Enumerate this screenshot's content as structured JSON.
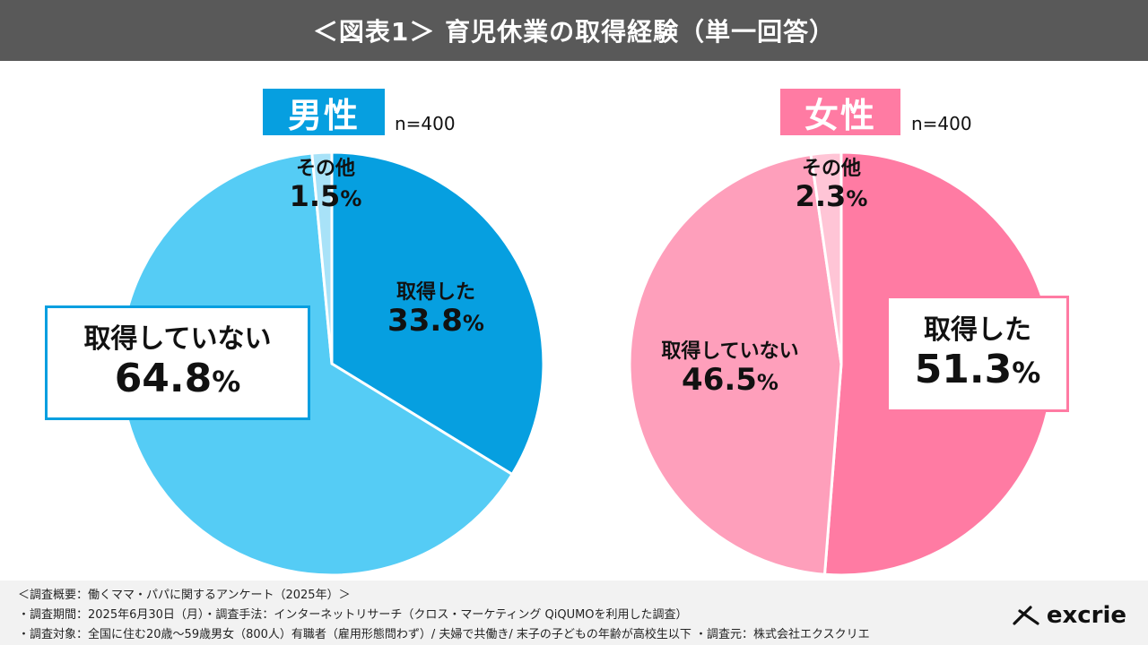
{
  "title": "＜図表1＞ 育児休業の取得経験（単一回答）",
  "chart_data": [
    {
      "type": "pie",
      "group": "男性",
      "n": "n=400",
      "slices": [
        {
          "label": "取得した",
          "value": 33.8,
          "display": "33.8",
          "color": "#069fe0"
        },
        {
          "label": "取得していない",
          "value": 64.8,
          "display": "64.8",
          "color": "#55ccf5"
        },
        {
          "label": "その他",
          "value": 1.5,
          "display": "1.5",
          "color": "#a8e2f8"
        }
      ]
    },
    {
      "type": "pie",
      "group": "女性",
      "n": "n=400",
      "slices": [
        {
          "label": "取得した",
          "value": 51.3,
          "display": "51.3",
          "color": "#ff7ba3"
        },
        {
          "label": "取得していない",
          "value": 46.5,
          "display": "46.5",
          "color": "#fe9fbb"
        },
        {
          "label": "その他",
          "value": 2.3,
          "display": "2.3",
          "color": "#ffc5d6"
        }
      ]
    }
  ],
  "percent_sign": "%",
  "colors": {
    "male": "#069fe0",
    "female": "#ff7ba3",
    "title_bg": "#595959"
  },
  "footer": {
    "line1": "＜調査概要：働くママ・パパに関するアンケート（2025年）＞",
    "line2": "・調査期間：2025年6月30日（月）・調査手法：インターネットリサーチ（クロス・マーケティング QiQUMOを利用した調査）",
    "line3": "・調査対象：全国に住む20歳～59歳男女（800人）有職者（雇用形態問わず）/ 夫婦で共働き/ 末子の子どもの年齢が高校生以下 ・調査元：株式会社エクスクリエ"
  },
  "logo": {
    "text": "excrie"
  }
}
